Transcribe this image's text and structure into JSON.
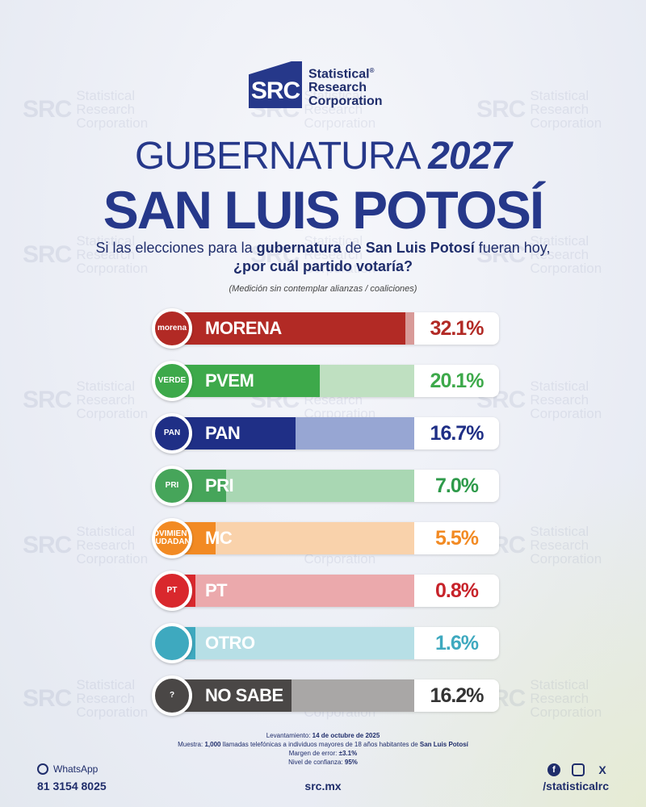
{
  "logo": {
    "mark": "SRC",
    "line1": "Statistical",
    "line2": "Research",
    "line3": "Corporation",
    "registered": "®"
  },
  "header": {
    "title_part1": "GUBERNATURA",
    "title_year": "2027",
    "subtitle": "SAN LUIS POTOSÍ"
  },
  "question": {
    "q1": "Si las elecciones para la",
    "q2": "gubernatura",
    "q3": "de",
    "q4": "San Luis Potosí",
    "q5": "fueran hoy,",
    "q6": "¿por cuál partido votaría?",
    "note": "(Medición sin contemplar alianzas / coaliciones)"
  },
  "chart_data": {
    "type": "bar",
    "orientation": "horizontal",
    "categories": [
      "MORENA",
      "PVEM",
      "PAN",
      "PRI",
      "MC",
      "PT",
      "OTRO",
      "NO SABE"
    ],
    "values": [
      32.1,
      20.1,
      16.7,
      7.0,
      5.5,
      0.8,
      1.6,
      16.2
    ],
    "value_labels": [
      "32.1%",
      "20.1%",
      "16.7%",
      "7.0%",
      "5.5%",
      "0.8%",
      "1.6%",
      "16.2%"
    ],
    "badges": [
      "morena",
      "VERDE",
      "PAN",
      "PRI",
      "MOVIMIENTO CIUDADANO",
      "PT",
      "",
      "?"
    ],
    "colors": [
      "#b22a25",
      "#3da94a",
      "#1f2f86",
      "#46a55a",
      "#f28a23",
      "#d9282d",
      "#3ea9bf",
      "#4a4746"
    ],
    "light_colors": [
      "#d89a98",
      "#bfe0c1",
      "#97a6d3",
      "#a9d7b3",
      "#f9d2ab",
      "#eba9ac",
      "#b7dfe6",
      "#a9a7a6"
    ],
    "pct_colors": [
      "#b22a25",
      "#3da94a",
      "#1f2f86",
      "#2e9a4a",
      "#f28a23",
      "#c7232a",
      "#3ea9bf",
      "#333333"
    ],
    "xlim": [
      0,
      100
    ]
  },
  "footer": {
    "lev_label": "Levantamiento:",
    "lev_value": "14 de octubre de 2025",
    "muestra_label": "Muestra:",
    "muestra_value": "1,000",
    "muestra_text": "llamadas telefónicas a individuos mayores de 18 años habitantes de",
    "muestra_place": "San Luis Potosí",
    "margen_label": "Margen de error:",
    "margen_value": "±3.1%",
    "nivel_label": "Nivel de confianza:",
    "nivel_value": "95%",
    "whatsapp_label": "WhatsApp",
    "phone": "81 3154 8025",
    "site": "src.mx",
    "handle": "/statisticalrc",
    "social_icons": [
      "facebook-icon",
      "instagram-icon",
      "x-icon"
    ]
  }
}
